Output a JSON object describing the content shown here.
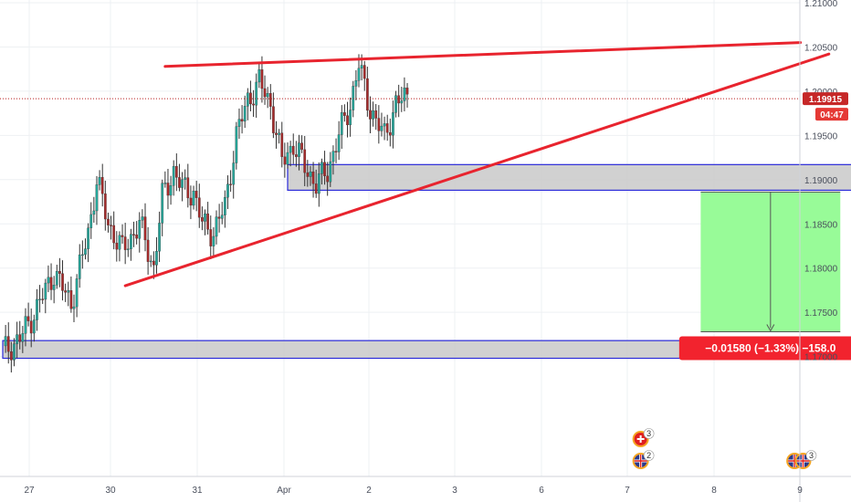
{
  "chart_data": {
    "type": "candlestick",
    "y_axis": {
      "ticks": [
        "1.21000",
        "1.20500",
        "1.20000",
        "1.19500",
        "1.19000",
        "1.18500",
        "1.18000",
        "1.17500",
        "1.17000"
      ],
      "range": [
        1.166,
        1.212
      ]
    },
    "x_axis": {
      "ticks": [
        "27",
        "30",
        "31",
        "Apr",
        "2",
        "3",
        "6",
        "7",
        "8",
        "9"
      ]
    },
    "current_price": {
      "value": "1.19915",
      "countdown": "04:47",
      "price": 1.19915
    },
    "zones": [
      {
        "name": "upper-zone",
        "y_top": 1.1917,
        "y_bottom": 1.1888,
        "x_start": 100,
        "x_end": 366
      },
      {
        "name": "lower-zone",
        "y_top": 1.1718,
        "y_bottom": 1.1698,
        "x_start": 0,
        "x_end": 460
      }
    ],
    "trendlines": [
      {
        "name": "upper-trendline",
        "from": [
          57,
          1.2028
        ],
        "to": [
          280,
          1.2055
        ]
      },
      {
        "name": "lower-trendline",
        "from": [
          43,
          1.178
        ],
        "to": [
          290,
          1.2042
        ]
      }
    ],
    "measure": {
      "x_start": 245,
      "x_end": 294,
      "y_top": 1.1886,
      "y_bottom": 1.1728,
      "label": "−0.01580 (−1.33%) −158.0"
    },
    "events": [
      {
        "bar": 222,
        "type": "uk",
        "count": "2"
      },
      {
        "bar": 222,
        "type": "ch",
        "count": "3"
      },
      {
        "bar": 276,
        "type": "uk",
        "count": ""
      },
      {
        "bar": 279,
        "type": "uk",
        "count": "3"
      },
      {
        "bar": 328,
        "type": "uk",
        "count": "2"
      },
      {
        "bar": 384,
        "type": "ch",
        "count": ""
      },
      {
        "bar": 384,
        "type": "uk",
        "count": ""
      },
      {
        "bar": 420,
        "type": "ch",
        "count": "2"
      }
    ],
    "candles": []
  },
  "colors": {
    "up": "#26a69a",
    "down": "#a52a2a",
    "wick": "#333333",
    "trendline": "#e8242e",
    "zone_fill": "#c9c9c9",
    "zone_border": "#2a2ad9",
    "measure_fill": "#98fb98",
    "measure_label_bg": "#f2232e",
    "price_line": "#b71c1c",
    "price_tag": "#c62828"
  }
}
